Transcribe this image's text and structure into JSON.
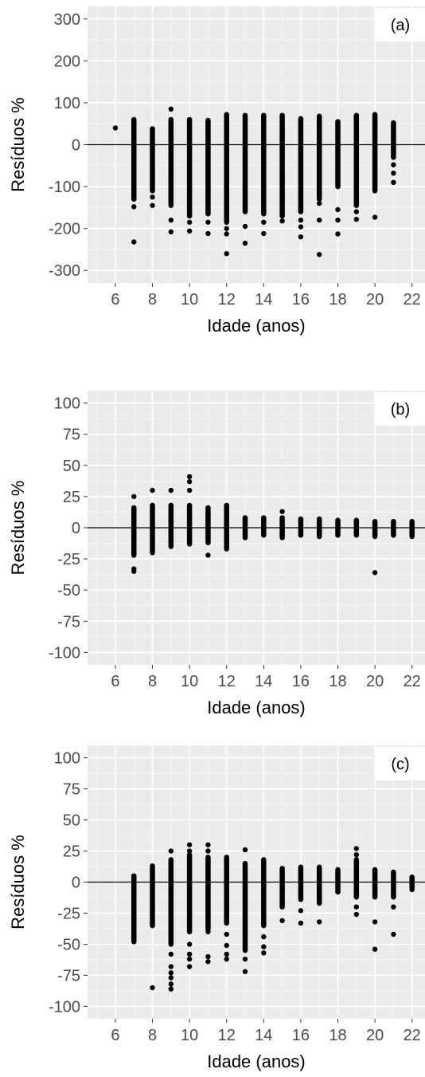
{
  "chart_data": [
    {
      "type": "scatter",
      "panel_label": "(a)",
      "xlabel": "Idade (anos)",
      "ylabel": "Resíduos %",
      "xlim": [
        4.5,
        22.7
      ],
      "ylim": [
        -330,
        330
      ],
      "xticks": [
        6,
        8,
        10,
        12,
        14,
        16,
        18,
        20,
        22
      ],
      "yticks": [
        -300,
        -200,
        -100,
        0,
        100,
        200,
        300
      ],
      "grid": true,
      "reference_line_y": 0,
      "columns": [
        {
          "x": 6,
          "min": 40,
          "max": 40,
          "outliers": []
        },
        {
          "x": 7,
          "min": -130,
          "max": 60,
          "outliers": [
            -148,
            -232
          ]
        },
        {
          "x": 8,
          "min": -110,
          "max": 38,
          "outliers": [
            -125,
            -145
          ]
        },
        {
          "x": 9,
          "min": -145,
          "max": 60,
          "outliers": [
            85,
            -180,
            -208
          ]
        },
        {
          "x": 10,
          "min": -170,
          "max": 60,
          "outliers": [
            -185,
            -206
          ]
        },
        {
          "x": 11,
          "min": -165,
          "max": 58,
          "outliers": [
            -185,
            -212
          ]
        },
        {
          "x": 12,
          "min": -185,
          "max": 72,
          "outliers": [
            -200,
            -213,
            -260
          ]
        },
        {
          "x": 13,
          "min": -160,
          "max": 70,
          "outliers": [
            -195,
            -235
          ]
        },
        {
          "x": 14,
          "min": -165,
          "max": 70,
          "outliers": [
            -185,
            -212
          ]
        },
        {
          "x": 15,
          "min": -170,
          "max": 70,
          "outliers": [
            -182
          ]
        },
        {
          "x": 16,
          "min": -160,
          "max": 62,
          "outliers": [
            -180,
            -196,
            -220
          ]
        },
        {
          "x": 17,
          "min": -130,
          "max": 68,
          "outliers": [
            -140,
            -180,
            -262
          ]
        },
        {
          "x": 18,
          "min": -100,
          "max": 55,
          "outliers": [
            -155,
            -180,
            -213
          ]
        },
        {
          "x": 19,
          "min": -145,
          "max": 70,
          "outliers": [
            -160,
            -178
          ]
        },
        {
          "x": 20,
          "min": -110,
          "max": 72,
          "outliers": [
            -173
          ]
        },
        {
          "x": 21,
          "min": -30,
          "max": 52,
          "outliers": [
            -48,
            -68,
            -90
          ]
        }
      ]
    },
    {
      "type": "scatter",
      "panel_label": "(b)",
      "xlabel": "Idade (anos)",
      "ylabel": "Resíduos %",
      "xlim": [
        4.5,
        22.7
      ],
      "ylim": [
        -110,
        110
      ],
      "xticks": [
        6,
        8,
        10,
        12,
        14,
        16,
        18,
        20,
        22
      ],
      "yticks": [
        -100,
        -75,
        -50,
        -25,
        0,
        25,
        50,
        75,
        100
      ],
      "grid": true,
      "reference_line_y": 0,
      "columns": [
        {
          "x": 7,
          "min": -22,
          "max": 16,
          "outliers": [
            25,
            -33,
            -35
          ]
        },
        {
          "x": 8,
          "min": -20,
          "max": 18,
          "outliers": [
            30
          ]
        },
        {
          "x": 9,
          "min": -15,
          "max": 18,
          "outliers": [
            30
          ]
        },
        {
          "x": 10,
          "min": -13,
          "max": 18,
          "outliers": [
            30,
            37,
            41
          ]
        },
        {
          "x": 11,
          "min": -12,
          "max": 16,
          "outliers": [
            -22
          ]
        },
        {
          "x": 12,
          "min": -17,
          "max": 18,
          "outliers": []
        },
        {
          "x": 13,
          "min": -8,
          "max": 8,
          "outliers": []
        },
        {
          "x": 14,
          "min": -6,
          "max": 8,
          "outliers": []
        },
        {
          "x": 15,
          "min": -8,
          "max": 8,
          "outliers": [
            13
          ]
        },
        {
          "x": 16,
          "min": -6,
          "max": 7,
          "outliers": []
        },
        {
          "x": 17,
          "min": -7,
          "max": 7,
          "outliers": []
        },
        {
          "x": 18,
          "min": -6,
          "max": 6,
          "outliers": []
        },
        {
          "x": 19,
          "min": -6,
          "max": 6,
          "outliers": []
        },
        {
          "x": 20,
          "min": -7,
          "max": 5,
          "outliers": [
            -36
          ]
        },
        {
          "x": 21,
          "min": -6,
          "max": 5,
          "outliers": []
        },
        {
          "x": 22,
          "min": -7,
          "max": 5,
          "outliers": []
        }
      ]
    },
    {
      "type": "scatter",
      "panel_label": "(c)",
      "xlabel": "Idade (anos)",
      "ylabel": "Resíduos %",
      "xlim": [
        4.5,
        22.7
      ],
      "ylim": [
        -110,
        110
      ],
      "xticks": [
        6,
        8,
        10,
        12,
        14,
        16,
        18,
        20,
        22
      ],
      "yticks": [
        -100,
        -75,
        -50,
        -25,
        0,
        25,
        50,
        75,
        100
      ],
      "grid": true,
      "reference_line_y": 0,
      "columns": [
        {
          "x": 7,
          "min": -48,
          "max": 5,
          "outliers": []
        },
        {
          "x": 8,
          "min": -35,
          "max": 13,
          "outliers": [
            -85
          ]
        },
        {
          "x": 9,
          "min": -50,
          "max": 18,
          "outliers": [
            25,
            -58,
            -68,
            -73,
            -77,
            -82,
            -86
          ]
        },
        {
          "x": 10,
          "min": -40,
          "max": 22,
          "outliers": [
            25,
            30,
            -50,
            -58,
            -62,
            -68
          ]
        },
        {
          "x": 11,
          "min": -38,
          "max": 20,
          "outliers": [
            25,
            30,
            -40,
            -60,
            -64
          ]
        },
        {
          "x": 12,
          "min": -33,
          "max": 20,
          "outliers": [
            -42,
            -51,
            -58,
            -62
          ]
        },
        {
          "x": 13,
          "min": -55,
          "max": 15,
          "outliers": [
            26,
            -62,
            -72
          ]
        },
        {
          "x": 14,
          "min": -35,
          "max": 18,
          "outliers": [
            -44,
            -52,
            -57
          ]
        },
        {
          "x": 15,
          "min": -20,
          "max": 11,
          "outliers": [
            -31
          ]
        },
        {
          "x": 16,
          "min": -14,
          "max": 12,
          "outliers": [
            -23,
            -33
          ]
        },
        {
          "x": 17,
          "min": -17,
          "max": 12,
          "outliers": [
            -32
          ]
        },
        {
          "x": 18,
          "min": -8,
          "max": 10,
          "outliers": []
        },
        {
          "x": 19,
          "min": -12,
          "max": 18,
          "outliers": [
            22,
            27,
            -20,
            -26
          ]
        },
        {
          "x": 20,
          "min": -12,
          "max": 10,
          "outliers": [
            -32,
            -54
          ]
        },
        {
          "x": 21,
          "min": -12,
          "max": 8,
          "outliers": [
            -20,
            -42
          ]
        },
        {
          "x": 22,
          "min": -6,
          "max": 4,
          "outliers": []
        }
      ]
    }
  ]
}
